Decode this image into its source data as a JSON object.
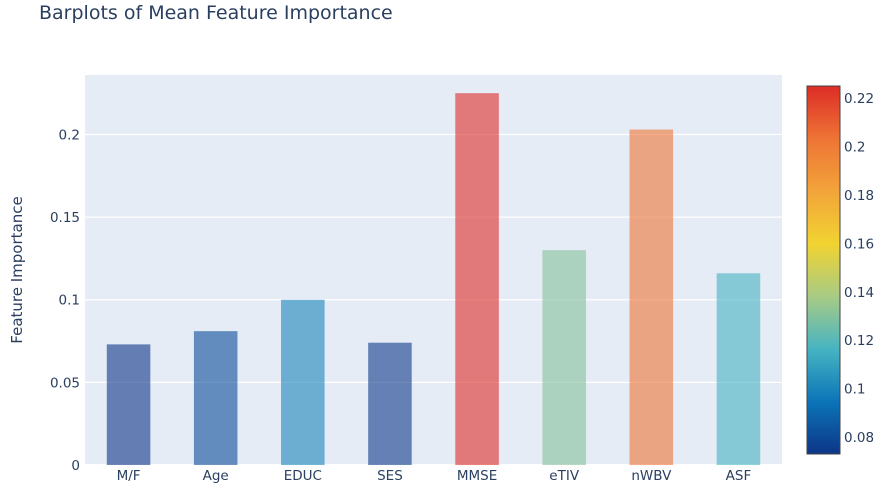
{
  "chart_data": {
    "type": "bar",
    "title": "Barplots of Mean Feature Importance",
    "xlabel": "",
    "ylabel": "Feature Importance",
    "categories": [
      "M/F",
      "Age",
      "EDUC",
      "SES",
      "MMSE",
      "eTIV",
      "nWBV",
      "ASF"
    ],
    "values": [
      0.073,
      0.081,
      0.1,
      0.074,
      0.225,
      0.13,
      0.203,
      0.116
    ],
    "ylim": [
      0,
      0.236
    ],
    "yticks": [
      0,
      0.05,
      0.1,
      0.15,
      0.2
    ],
    "ytick_labels": [
      "0",
      "0.05",
      "0.1",
      "0.15",
      "0.2"
    ],
    "grid": true,
    "plot_background": "#e5ecf6",
    "bar_opacity": 0.6,
    "colorbar": {
      "range": [
        0.073,
        0.225
      ],
      "ticks": [
        0.08,
        0.1,
        0.12,
        0.14,
        0.16,
        0.18,
        0.2,
        0.22
      ],
      "tick_labels": [
        "0.08",
        "0.1",
        "0.12",
        "0.14",
        "0.16",
        "0.18",
        "0.2",
        "0.22"
      ],
      "colorscale": [
        "#053061",
        "#2166ac",
        "#4393c3",
        "#92c5de",
        "#d1e5f0",
        "#f7f7f7",
        "#fddbc7",
        "#f4a582",
        "#d6604d",
        "#b2182b",
        "#67001f"
      ],
      "colorscale_rendered": [
        "#0d3587",
        "#0b75b8",
        "#47b4c2",
        "#a8cb84",
        "#f1d331",
        "#f2a43a",
        "#ee7436",
        "#dd2c26"
      ]
    }
  }
}
